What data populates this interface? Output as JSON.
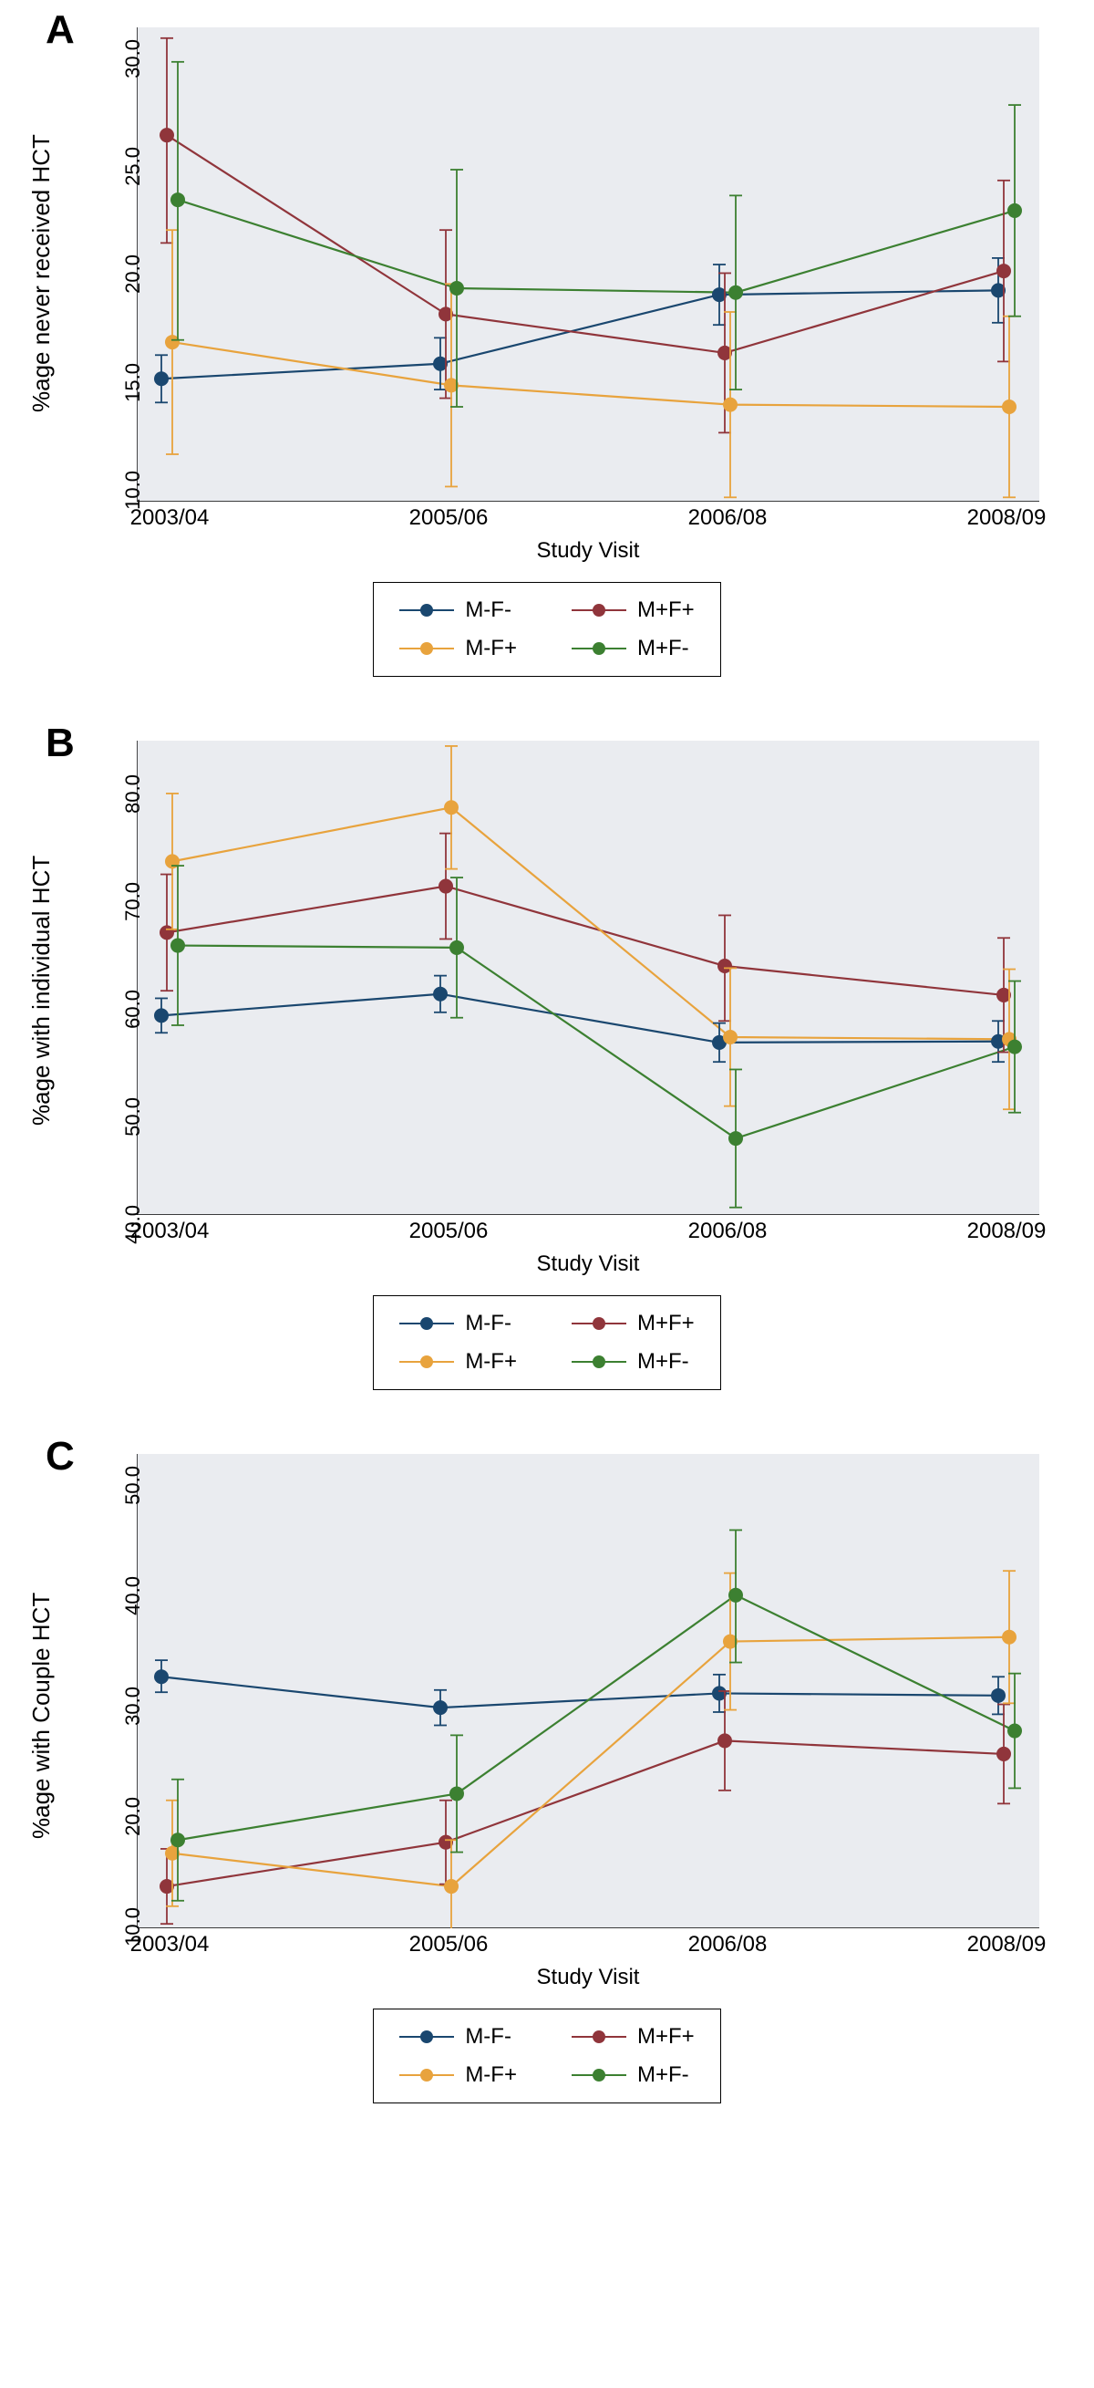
{
  "figure_width": 1200,
  "figure_height": 2618,
  "plot_inner_width": 990,
  "plot_inner_height": 520,
  "panel_bg": "#eaecf0",
  "axis_text_color": "#000000",
  "x_axis": {
    "label": "Study Visit",
    "categories": [
      "2003/04",
      "2005/06",
      "2006/08",
      "2008/09"
    ]
  },
  "series_style": {
    "M-F-": {
      "color": "#1a476f"
    },
    "M+F+": {
      "color": "#90353b"
    },
    "M-F+": {
      "color": "#e8a33d"
    },
    "M+F-": {
      "color": "#3c8031"
    }
  },
  "legend_order": [
    "M-F-",
    "M+F+",
    "M-F+",
    "M+F-"
  ],
  "marker_radius": 8,
  "line_width": 2.2,
  "cap_half_width": 7,
  "panels": [
    {
      "id": "A",
      "ylabel": "%age never received HCT",
      "ylim": [
        8,
        30
      ],
      "yticks": [
        10.0,
        15.0,
        20.0,
        25.0,
        30.0
      ],
      "series": {
        "M-F-": {
          "y": [
            13.7,
            14.4,
            17.6,
            17.8
          ],
          "lo": [
            12.6,
            13.2,
            16.2,
            16.3
          ],
          "hi": [
            14.8,
            15.6,
            19.0,
            19.3
          ]
        },
        "M+F+": {
          "y": [
            25.0,
            16.7,
            14.9,
            18.7
          ],
          "lo": [
            20.0,
            12.8,
            11.2,
            14.5
          ],
          "hi": [
            29.5,
            20.6,
            18.6,
            22.9
          ]
        },
        "M-F+": {
          "y": [
            15.4,
            13.4,
            12.5,
            12.4
          ],
          "lo": [
            10.2,
            8.7,
            8.2,
            8.2
          ],
          "hi": [
            20.6,
            18.1,
            16.8,
            16.6
          ]
        },
        "M+F-": {
          "y": [
            22.0,
            17.9,
            17.7,
            21.5
          ],
          "lo": [
            15.5,
            12.4,
            13.2,
            16.6
          ],
          "hi": [
            28.4,
            23.4,
            22.2,
            26.4
          ]
        }
      }
    },
    {
      "id": "B",
      "ylabel": "%age with individual HCT",
      "ylim": [
        38,
        82
      ],
      "yticks": [
        40.0,
        50.0,
        60.0,
        70.0,
        80.0
      ],
      "series": {
        "M-F-": {
          "y": [
            56.5,
            58.5,
            54.0,
            54.1
          ],
          "lo": [
            54.9,
            56.8,
            52.2,
            52.2
          ],
          "hi": [
            58.1,
            60.2,
            55.8,
            56.0
          ]
        },
        "M+F+": {
          "y": [
            64.2,
            68.5,
            61.1,
            58.4
          ],
          "lo": [
            58.8,
            63.6,
            56.0,
            53.1
          ],
          "hi": [
            69.6,
            73.4,
            65.8,
            63.7
          ]
        },
        "M-F+": {
          "y": [
            70.8,
            75.8,
            54.5,
            54.3
          ],
          "lo": [
            64.5,
            70.1,
            48.1,
            47.8
          ],
          "hi": [
            77.1,
            81.5,
            60.9,
            60.8
          ]
        },
        "M+F-": {
          "y": [
            63.0,
            62.8,
            45.1,
            53.6
          ],
          "lo": [
            55.6,
            56.3,
            38.7,
            47.5
          ],
          "hi": [
            70.4,
            69.3,
            51.5,
            59.7
          ]
        }
      }
    },
    {
      "id": "C",
      "ylabel": "%age with Couple HCT",
      "ylim": [
        7,
        50
      ],
      "yticks": [
        10.0,
        20.0,
        30.0,
        40.0,
        50.0
      ],
      "series": {
        "M-F-": {
          "y": [
            29.8,
            27.0,
            28.3,
            28.1
          ],
          "lo": [
            28.4,
            25.4,
            26.6,
            26.4
          ],
          "hi": [
            31.3,
            28.6,
            30.0,
            29.8
          ]
        },
        "M+F+": {
          "y": [
            10.8,
            14.8,
            24.0,
            22.8
          ],
          "lo": [
            7.4,
            11.0,
            19.5,
            18.3
          ],
          "hi": [
            14.2,
            18.6,
            28.5,
            27.3
          ]
        },
        "M-F+": {
          "y": [
            13.8,
            10.8,
            33.0,
            33.4
          ],
          "lo": [
            9.0,
            6.6,
            26.8,
            27.4
          ],
          "hi": [
            18.6,
            15.0,
            39.2,
            39.4
          ]
        },
        "M+F-": {
          "y": [
            15.0,
            19.2,
            37.2,
            24.9
          ],
          "lo": [
            9.5,
            13.9,
            31.1,
            19.7
          ],
          "hi": [
            20.5,
            24.5,
            43.1,
            30.1
          ]
        }
      }
    }
  ]
}
